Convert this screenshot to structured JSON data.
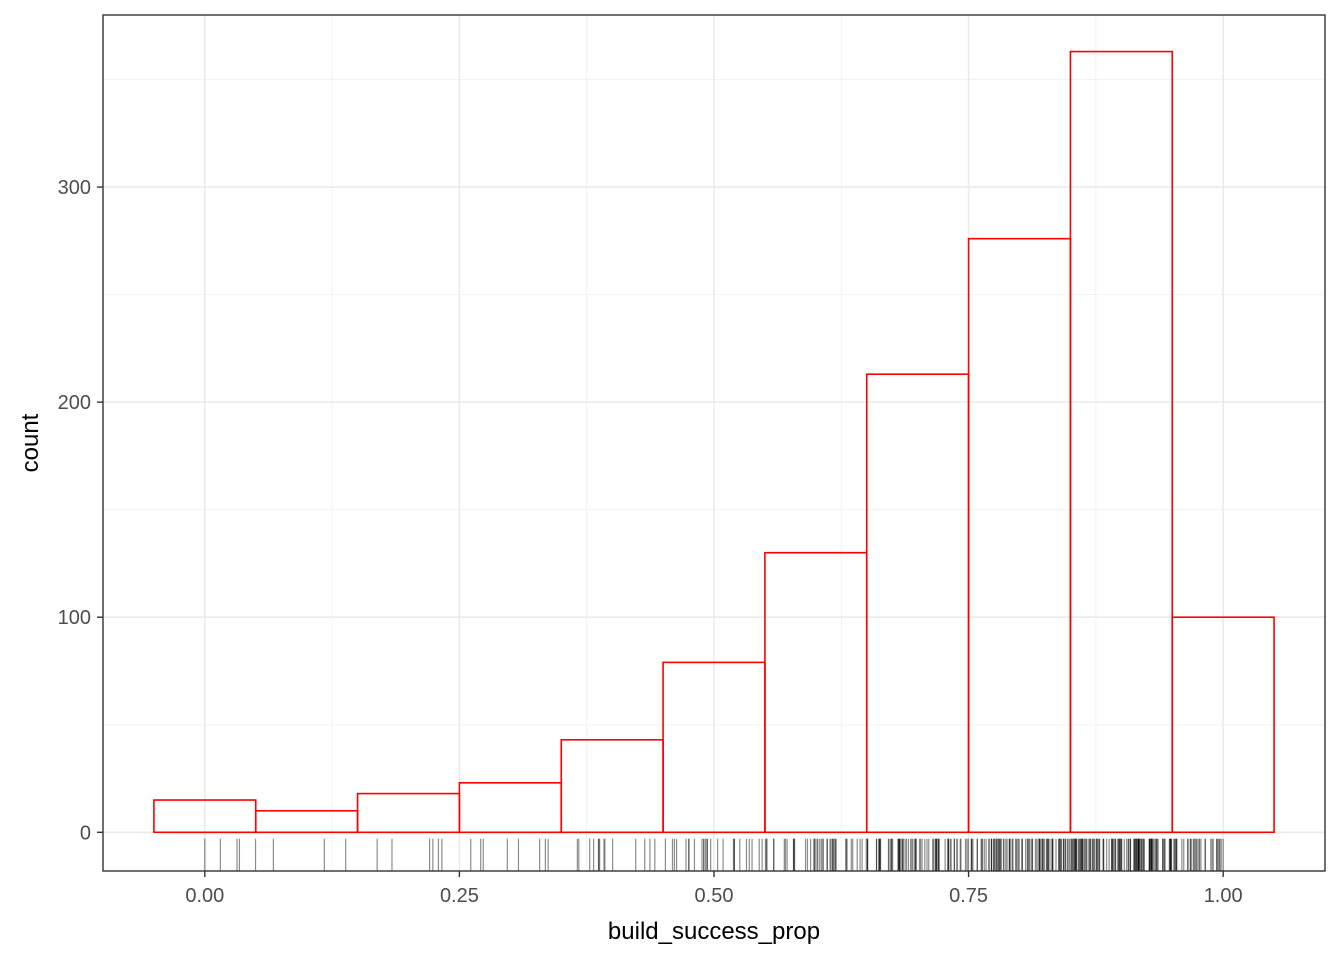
{
  "chart_data": {
    "type": "bar",
    "xlabel": "build_success_prop",
    "ylabel": "count",
    "xlim": [
      -0.1,
      1.1
    ],
    "ylim": [
      -18,
      380
    ],
    "x_ticks": [
      "0.00",
      "0.25",
      "0.50",
      "0.75",
      "1.00"
    ],
    "y_ticks": [
      "0",
      "100",
      "200",
      "300"
    ],
    "grid": true,
    "bins": [
      {
        "start": -0.05,
        "end": 0.05,
        "count": 15
      },
      {
        "start": 0.05,
        "end": 0.15,
        "count": 10
      },
      {
        "start": 0.15,
        "end": 0.25,
        "count": 18
      },
      {
        "start": 0.25,
        "end": 0.35,
        "count": 23
      },
      {
        "start": 0.35,
        "end": 0.45,
        "count": 43
      },
      {
        "start": 0.45,
        "end": 0.55,
        "count": 79
      },
      {
        "start": 0.55,
        "end": 0.65,
        "count": 130
      },
      {
        "start": 0.65,
        "end": 0.75,
        "count": 213
      },
      {
        "start": 0.75,
        "end": 0.85,
        "count": 276
      },
      {
        "start": 0.85,
        "end": 0.95,
        "count": 363
      },
      {
        "start": 0.95,
        "end": 1.05,
        "count": 100
      }
    ],
    "rug": true,
    "colors": {
      "bar_outline": "#ff0000",
      "rug": "#000000"
    }
  }
}
